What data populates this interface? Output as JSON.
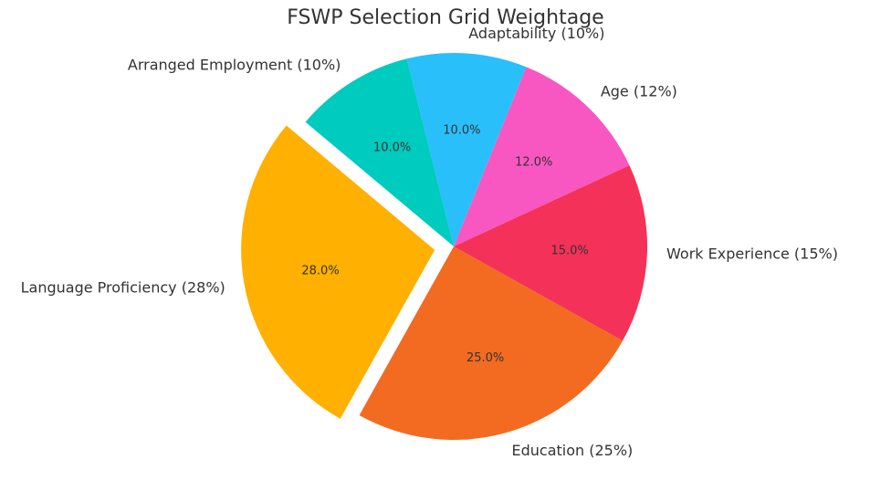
{
  "chart_data": {
    "type": "pie",
    "title": "FSWP Selection Grid Weightage",
    "categories": [
      "Language Proficiency (28%)",
      "Education (25%)",
      "Work Experience (15%)",
      "Age (12%)",
      "Adaptability (10%)",
      "Arranged Employment (10%)"
    ],
    "values": [
      28,
      25,
      15,
      12,
      10,
      10
    ],
    "value_labels": [
      "28.0%",
      "25.0%",
      "15.0%",
      "12.0%",
      "10.0%",
      "10.0%"
    ],
    "colors": [
      "#ffb000",
      "#f26b21",
      "#f43158",
      "#f857c1",
      "#29bffa",
      "#00cbbf"
    ]
  }
}
